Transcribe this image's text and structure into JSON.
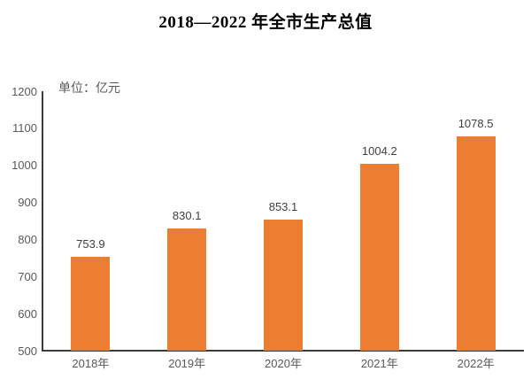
{
  "title": "2018—2022 年全市生产总值",
  "unit_label": "单位：亿元",
  "colors": {
    "bar": "#ED7D31",
    "axis_line": "#3b3b3b",
    "tick_label": "#595959",
    "data_label": "#404040",
    "title": "#000000",
    "background": "#ffffff"
  },
  "chart_data": {
    "type": "bar",
    "title": "2018—2022 年全市生产总值",
    "categories": [
      "2018年",
      "2019年",
      "2020年",
      "2021年",
      "2022年"
    ],
    "values": [
      753.9,
      830.1,
      853.1,
      1004.2,
      1078.5
    ],
    "data_labels": [
      "753.9",
      "830.1",
      "853.1",
      "1004.2",
      "1078.5"
    ],
    "xlabel": "",
    "ylabel": "单位：亿元",
    "ylim": [
      500,
      1200
    ],
    "ytick_step": 100,
    "ytick_labels": [
      "500",
      "600",
      "700",
      "800",
      "900",
      "1000",
      "1100",
      "1200"
    ],
    "grid": false,
    "legend": "none",
    "bar_color": "#ED7D31"
  }
}
